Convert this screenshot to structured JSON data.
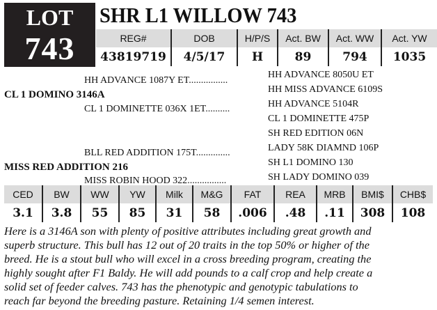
{
  "lot": {
    "label": "LOT",
    "number": "743"
  },
  "animal_name": "SHR L1 WILLOW 743",
  "info_table": {
    "headers": [
      "REG#",
      "DOB",
      "H/P/S",
      "Act. BW",
      "Act. WW",
      "Act. YW"
    ],
    "values": [
      "43819719",
      "4/5/17",
      "H",
      "89",
      "794",
      "1035"
    ]
  },
  "pedigree": {
    "sire": {
      "name": "CL 1 DOMINO 3146A",
      "sire": {
        "name": "HH ADVANCE 1087Y ET",
        "dots": "................",
        "sire": "HH ADVANCE 8050U ET",
        "dam": "HH MISS ADVANCE 6109S"
      },
      "dam": {
        "name": "CL 1 DOMINETTE 036X 1ET",
        "dots": "..........",
        "sire": "HH ADVANCE 5104R",
        "dam": "CL 1 DOMINETTE 475P"
      }
    },
    "dam": {
      "name": "MISS RED ADDITION 216",
      "sire": {
        "name": "BLL RED ADDITION 175T",
        "dots": "..............",
        "sire": "SH RED EDITION 06N",
        "dam": "LADY 58K DIAMND 106P"
      },
      "dam": {
        "name": "MISS ROBIN HOOD 322",
        "dots": "................",
        "sire": "SH L1 DOMINO 130",
        "dam": "SH LADY DOMINO 039"
      }
    }
  },
  "epd_table": {
    "headers": [
      "CED",
      "BW",
      "WW",
      "YW",
      "Milk",
      "M&G",
      "FAT",
      "REA",
      "MRB",
      "BMI$",
      "CHB$"
    ],
    "values": [
      "3.1",
      "3.8",
      "55",
      "85",
      "31",
      "58",
      ".006",
      ".48",
      ".11",
      "308",
      "108"
    ]
  },
  "description": [
    "Here is a 3146A son with plenty of positive attributes including great growth and",
    "superb structure. This bull has 12 out of 20 traits in the top 50% or higher of the",
    "breed. He is a stout bull who will excel in a cross breeding program, creating the",
    "highly sought after F1 Baldy. He will add pounds to a calf crop and help create a",
    "solid set of feeder calves. 743 has the phenotypic and genotypic tabulations to",
    "reach far beyond the breeding pasture. Retaining 1/4 semen interest."
  ]
}
